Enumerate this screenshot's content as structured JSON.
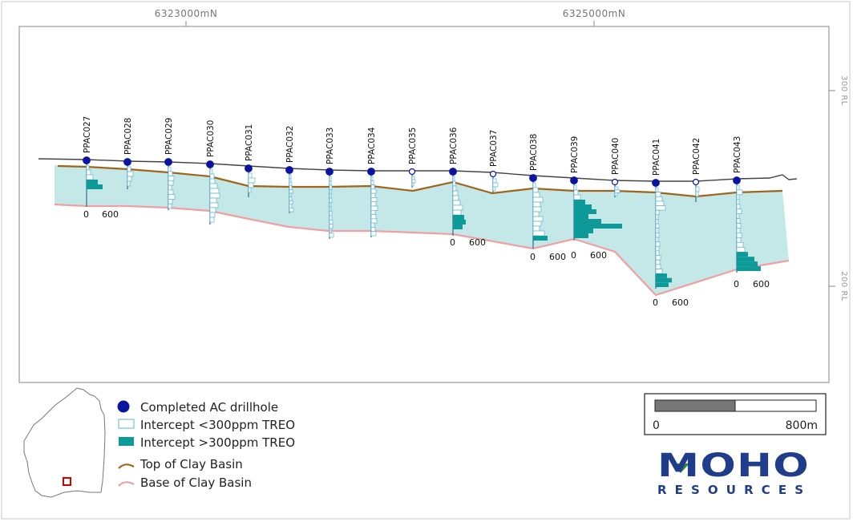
{
  "axes": {
    "top_labels": [
      "6323000mN",
      "6325000mN"
    ],
    "right_labels": [
      "300 RL",
      "200 RL"
    ]
  },
  "colors": {
    "basin_fill": "#c4e8e8",
    "surface": "#444444",
    "top_clay": "#a0651a",
    "base_clay": "#f0a0a0",
    "hole_completed": "#0a14a0",
    "intercept_low": "#5ab4d2",
    "intercept_high": "#0e9a98",
    "logo_blue": "#1f3d8a",
    "logo_green": "#2e8b3a",
    "location_marker": "#d00000"
  },
  "holes": [
    {
      "id": "PPAC027",
      "completed": true
    },
    {
      "id": "PPAC028",
      "completed": true
    },
    {
      "id": "PPAC029",
      "completed": true
    },
    {
      "id": "PPAC030",
      "completed": true
    },
    {
      "id": "PPAC031",
      "completed": true
    },
    {
      "id": "PPAC032",
      "completed": true
    },
    {
      "id": "PPAC033",
      "completed": true
    },
    {
      "id": "PPAC034",
      "completed": true
    },
    {
      "id": "PPAC035",
      "completed": false
    },
    {
      "id": "PPAC036",
      "completed": true
    },
    {
      "id": "PPAC037",
      "completed": false
    },
    {
      "id": "PPAC038",
      "completed": true
    },
    {
      "id": "PPAC039",
      "completed": true
    },
    {
      "id": "PPAC040",
      "completed": false
    },
    {
      "id": "PPAC041",
      "completed": true
    },
    {
      "id": "PPAC042",
      "completed": false
    },
    {
      "id": "PPAC043",
      "completed": true
    }
  ],
  "histogram_scale_labels": [
    "0",
    "600"
  ],
  "legend": {
    "completed_label": "Completed AC drillhole",
    "low_label": "Intercept <300ppm TREO",
    "high_label": "Intercept >300ppm TREO",
    "top_clay_label": "Top of Clay Basin",
    "base_clay_label": "Base of Clay Basin"
  },
  "scale_bar": {
    "left_label": "0",
    "right_label": "800m"
  },
  "logo": {
    "name": "MOHO",
    "sub": "RESOURCES"
  }
}
